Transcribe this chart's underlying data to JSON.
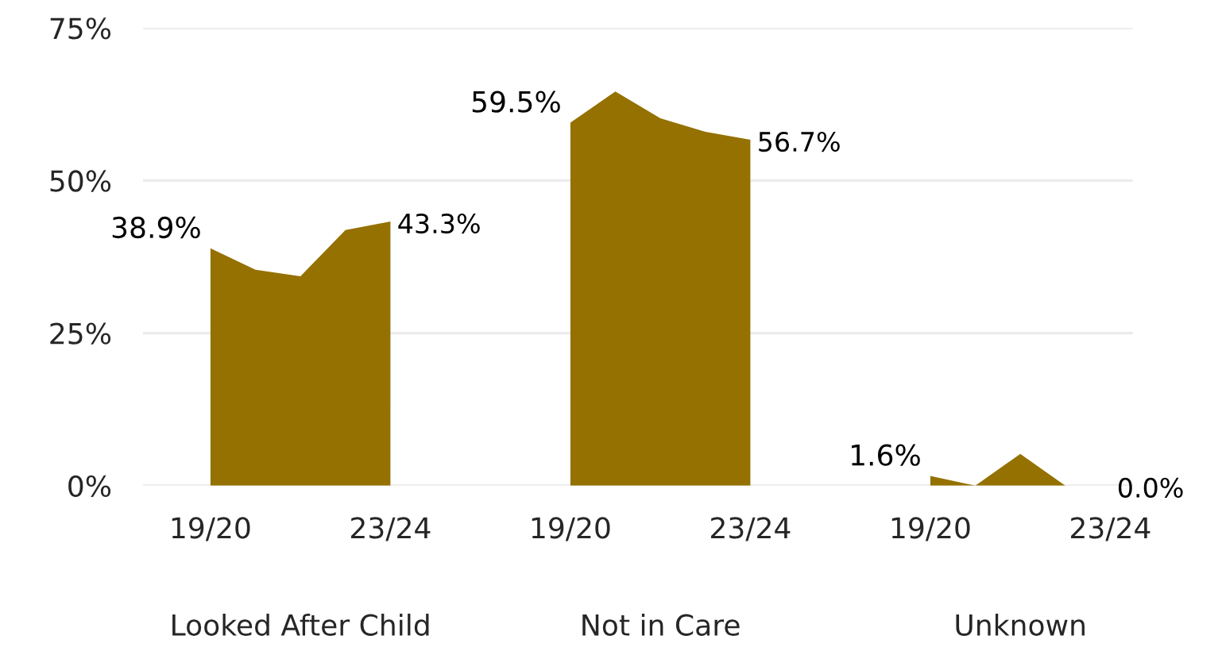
{
  "chart_data": {
    "type": "area",
    "categories": [
      "19/20",
      null,
      null,
      null,
      "23/24",
      null,
      null,
      null,
      "19/20",
      null,
      null,
      null,
      "23/24",
      null,
      null,
      null,
      "19/20",
      null,
      null,
      null,
      "23/24"
    ],
    "series": [
      {
        "color": "#947100",
        "values": [
          38.9,
          35.4,
          34.3,
          41.9,
          43.3,
          null,
          null,
          null,
          59.5,
          64.6,
          60.2,
          58.0,
          56.7,
          null,
          null,
          null,
          1.6,
          0.0,
          5.2,
          0.0,
          0.0
        ],
        "value_labels": [
          "38.9%",
          null,
          null,
          null,
          "43.3%",
          null,
          null,
          null,
          "59.5%",
          null,
          null,
          null,
          "56.7%",
          null,
          null,
          null,
          "1.6%",
          null,
          null,
          null,
          "0.0%"
        ]
      }
    ],
    "annotations": [
      "Looked After Child",
      "Not in Care",
      "Unknown"
    ],
    "ylim": [
      0,
      75
    ],
    "yticks": [
      {
        "value": 0,
        "label": "0%"
      },
      {
        "value": 25,
        "label": "25%"
      },
      {
        "value": 50,
        "label": "50%"
      },
      {
        "value": 75,
        "label": "75%"
      }
    ],
    "grid": "y"
  }
}
